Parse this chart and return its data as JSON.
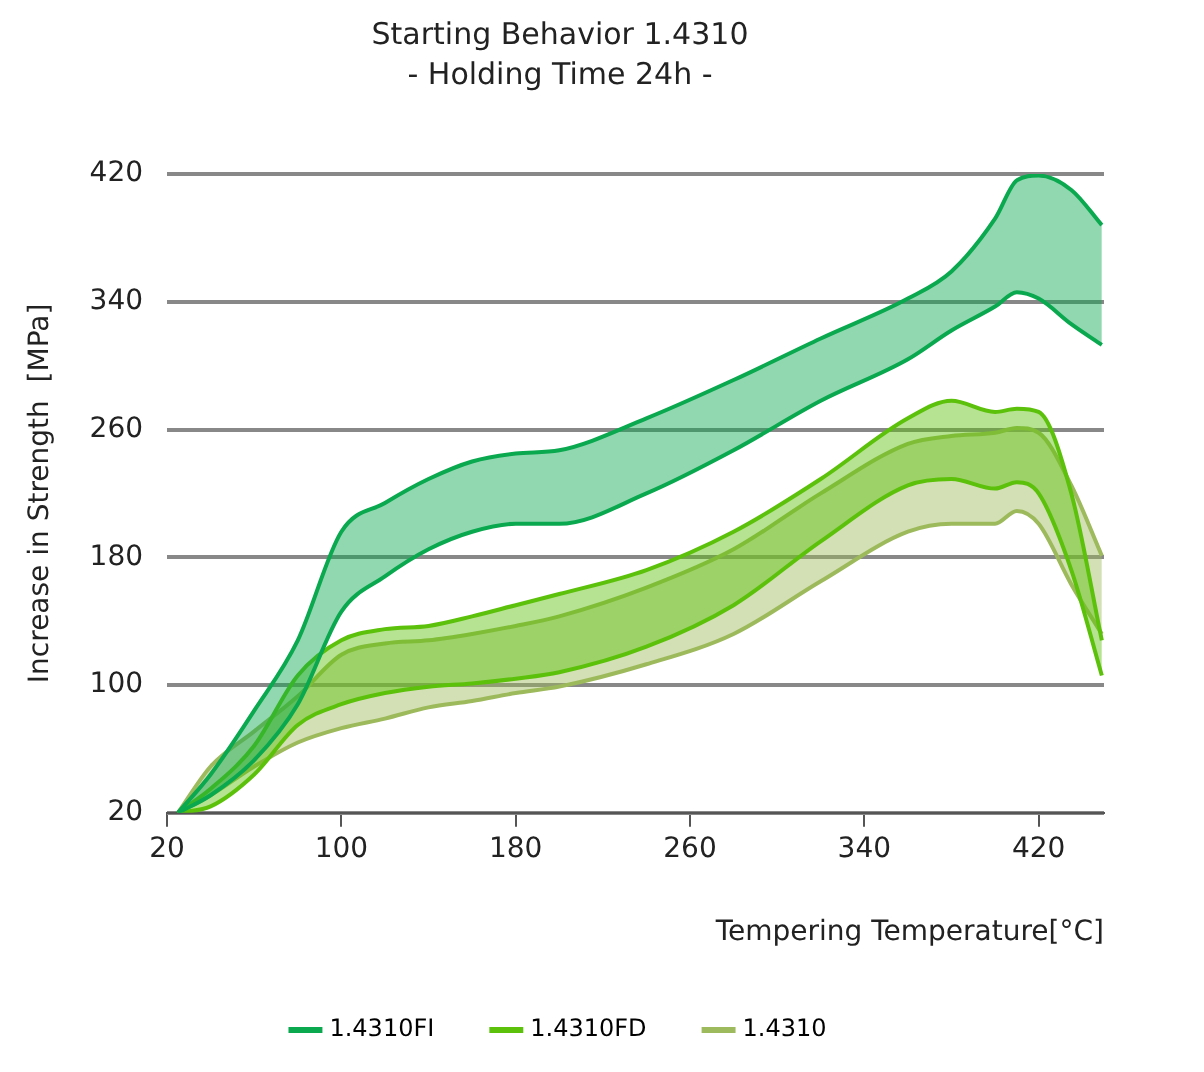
{
  "chart_data": {
    "type": "area",
    "title": "Starting Behavior 1.4310",
    "subtitle": "- Holding Time 24h -",
    "xlabel": "Tempering Temperature[°C]",
    "ylabel": "Increase in Strength  [MPa]",
    "x": [
      25,
      40,
      60,
      80,
      100,
      120,
      140,
      160,
      180,
      200,
      240,
      280,
      320,
      360,
      380,
      400,
      410,
      420,
      435,
      449
    ],
    "series": [
      {
        "name": "1.4310FI",
        "color": "#0aa84f",
        "values": [
          20,
          44,
          84,
          128,
          196,
          214,
          229,
          240,
          245,
          247,
          267,
          291,
          317,
          342,
          359,
          392,
          416,
          419,
          410,
          388
        ]
      },
      {
        "type": "line",
        "color": "#0aa84f",
        "values": [
          20,
          31,
          53,
          88,
          146,
          168,
          185,
          196,
          201,
          201,
          220,
          247,
          278,
          304,
          322,
          337,
          346,
          342,
          326,
          313
        ]
      },
      {
        "name": "1.4310FD",
        "color": "#5cc10a",
        "values": [
          20,
          35,
          62,
          106,
          128,
          135,
          137,
          143,
          150,
          157,
          172,
          196,
          229,
          267,
          278,
          271,
          273,
          271,
          220,
          128
        ]
      },
      {
        "type": "line",
        "color": "#5cc10a",
        "values": [
          20,
          24,
          44,
          75,
          88,
          95,
          99,
          101,
          104,
          108,
          124,
          150,
          190,
          225,
          229,
          223,
          227,
          220,
          172,
          106
        ]
      },
      {
        "name": "1.4310",
        "color": "#9dba5c",
        "values": [
          20,
          49,
          71,
          93,
          119,
          126,
          128,
          132,
          137,
          143,
          161,
          185,
          220,
          251,
          256,
          258,
          261,
          258,
          225,
          181
        ]
      },
      {
        "type": "line",
        "color": "#9dba5c",
        "values": [
          20,
          31,
          49,
          64,
          73,
          79,
          86,
          90,
          95,
          99,
          113,
          132,
          165,
          196,
          201,
          201,
          209,
          201,
          163,
          132
        ]
      }
    ],
    "xlim": [
      20,
      450
    ],
    "xticks": [
      20,
      100,
      180,
      260,
      340,
      420
    ],
    "ylim": [
      20,
      420
    ],
    "yticks": [
      20,
      100,
      180,
      260,
      340,
      420
    ],
    "grid": "y",
    "legend": "bottom",
    "marker": "none",
    "line_style": "solid"
  }
}
